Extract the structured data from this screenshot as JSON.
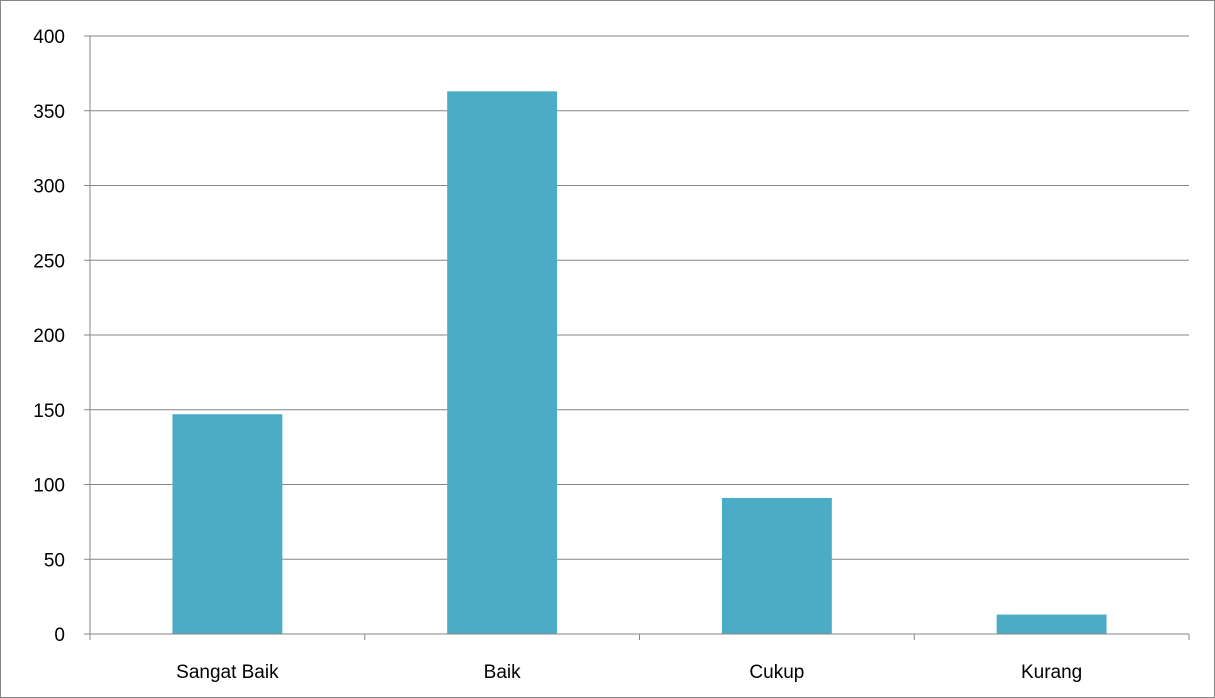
{
  "chart_data": {
    "type": "bar",
    "title": "",
    "xlabel": "",
    "ylabel": "",
    "categories": [
      "Sangat Baik",
      "Baik",
      "Cukup",
      "Kurang"
    ],
    "values": [
      147,
      363,
      91,
      13
    ],
    "ylim": [
      0,
      400
    ],
    "yticks": [
      "0",
      "50",
      "100",
      "150",
      "200",
      "250",
      "300",
      "350",
      "400"
    ],
    "grid": true,
    "legend": "none",
    "bar_color": "#4BACC6",
    "gridline_color": "#868686"
  }
}
